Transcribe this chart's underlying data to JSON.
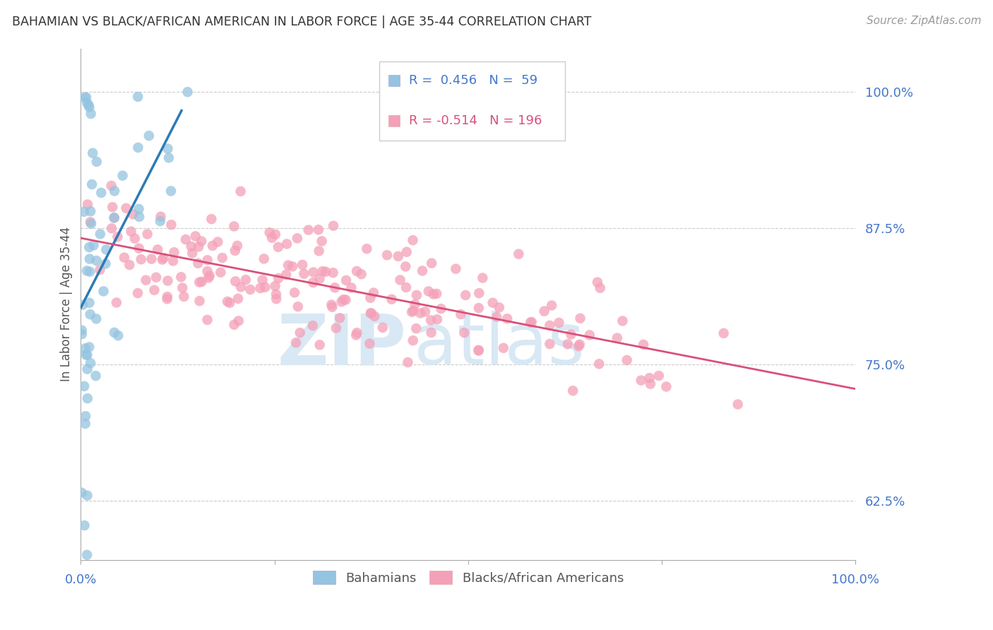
{
  "title": "BAHAMIAN VS BLACK/AFRICAN AMERICAN IN LABOR FORCE | AGE 35-44 CORRELATION CHART",
  "source": "Source: ZipAtlas.com",
  "ylabel": "In Labor Force | Age 35-44",
  "ytick_labels": [
    "62.5%",
    "75.0%",
    "87.5%",
    "100.0%"
  ],
  "ytick_values": [
    0.625,
    0.75,
    0.875,
    1.0
  ],
  "xlim": [
    0.0,
    1.0
  ],
  "ylim": [
    0.57,
    1.04
  ],
  "blue_color": "#94c4e0",
  "pink_color": "#f4a0b8",
  "blue_line_color": "#2c7bb6",
  "pink_line_color": "#d9507a",
  "axis_label_color": "#4477cc",
  "title_color": "#333333",
  "background_color": "#ffffff",
  "grid_color": "#cccccc",
  "watermark_zip_color": "#d8e8f4",
  "watermark_atlas_color": "#d8e8f4"
}
